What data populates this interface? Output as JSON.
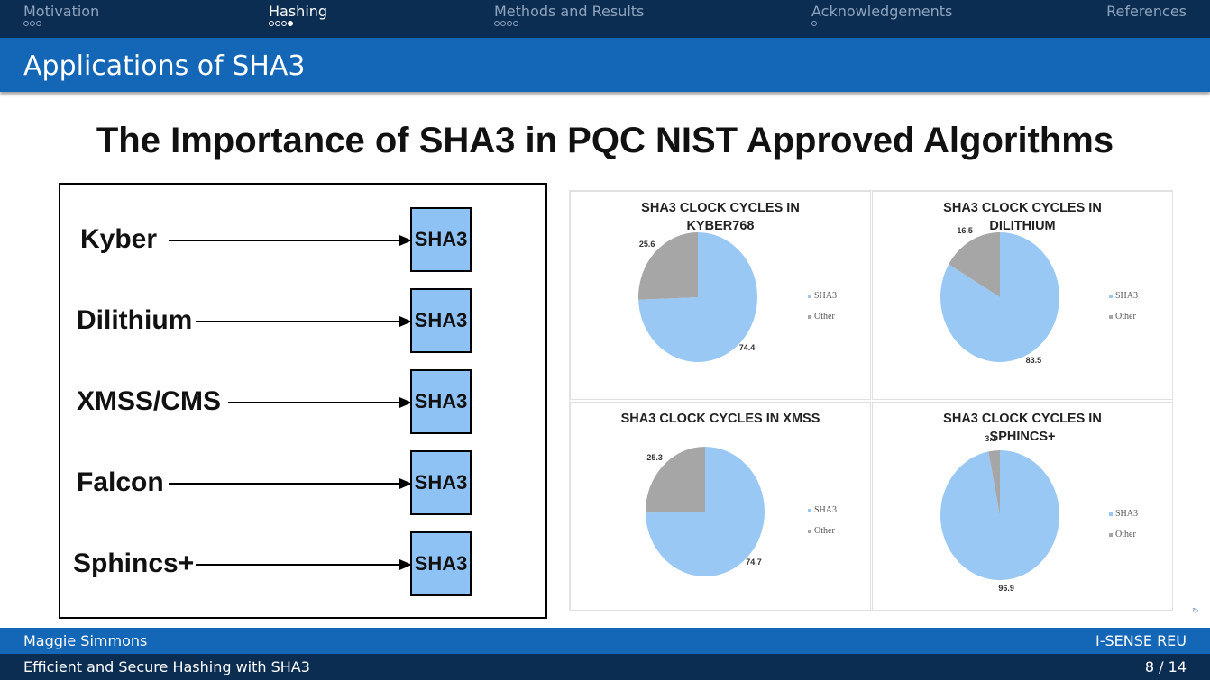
{
  "nav": {
    "sections": [
      {
        "label": "Motivation",
        "dots": 3,
        "filled": -1
      },
      {
        "label": "Hashing",
        "dots": 4,
        "filled": 3
      },
      {
        "label": "Methods and Results",
        "dots": 4,
        "filled": -1
      },
      {
        "label": "Acknowledgements",
        "dots": 1,
        "filled": -1
      },
      {
        "label": "References",
        "dots": 0,
        "filled": -1
      }
    ],
    "active_index": 1
  },
  "frame_title": "Applications of SHA3",
  "slide": {
    "heading": "The Importance of SHA3 in PQC NIST Approved Algorithms",
    "flow": {
      "target": "SHA3",
      "algorithms": [
        "Kyber",
        "Dilithium",
        "XMSS/CMS",
        "Falcon",
        "Sphincs+"
      ]
    },
    "legend": [
      "SHA3",
      "Other"
    ]
  },
  "colors": {
    "nav_bg": "#0c2d52",
    "title_bg": "#1467b6",
    "sha3": "#99c8f4",
    "other": "#a6a6a6"
  },
  "chart_data": [
    {
      "type": "pie",
      "title": "SHA3 CLOCK CYCLES IN\nKYBER768",
      "categories": [
        "SHA3",
        "Other"
      ],
      "values": [
        74.4,
        25.6
      ]
    },
    {
      "type": "pie",
      "title": "SHA3 CLOCK CYCLES IN\nDILITHIUM",
      "categories": [
        "SHA3",
        "Other"
      ],
      "values": [
        83.5,
        16.5
      ]
    },
    {
      "type": "pie",
      "title": "SHA3 CLOCK CYCLES IN XMSS",
      "categories": [
        "SHA3",
        "Other"
      ],
      "values": [
        74.7,
        25.3
      ]
    },
    {
      "type": "pie",
      "title": "SHA3 CLOCK CYCLES IN\nSPHINCS+",
      "categories": [
        "SHA3",
        "Other"
      ],
      "values": [
        96.9,
        3.1
      ]
    }
  ],
  "footer": {
    "author": "Maggie Simmons",
    "institute": "I-SENSE REU",
    "short_title": "Efficient and Secure Hashing with SHA3",
    "page": "8 / 14"
  }
}
